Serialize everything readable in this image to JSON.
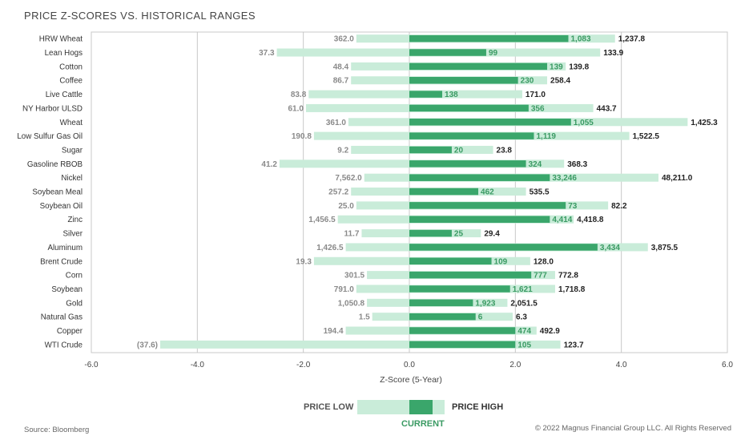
{
  "chart_data": {
    "type": "bar",
    "title": "PRICE Z-SCORES VS. HISTORICAL RANGES",
    "xlabel": "Z-Score (5-Year)",
    "xlim": [
      -6,
      6
    ],
    "xticks": [
      -6,
      -4,
      -2,
      0,
      2,
      4,
      6
    ],
    "xtick_labels": [
      "-6.0",
      "-4.0",
      "-2.0",
      "0.0",
      "2.0",
      "4.0",
      "6.0"
    ],
    "gridlines": "vertical",
    "legend": {
      "low": "PRICE LOW",
      "high": "PRICE HIGH",
      "current": "CURRENT"
    },
    "rows": [
      {
        "name": "HRW Wheat",
        "z_low": -1.0,
        "z_high": 3.88,
        "z_current": 3.0,
        "low_label": "362.0",
        "current_label": "1,083",
        "high_label": "1,237.8"
      },
      {
        "name": "Lean Hogs",
        "z_low": -2.5,
        "z_high": 3.6,
        "z_current": 1.45,
        "low_label": "37.3",
        "current_label": "99",
        "high_label": "133.9"
      },
      {
        "name": "Cotton",
        "z_low": -1.1,
        "z_high": 2.95,
        "z_current": 2.6,
        "low_label": "48.4",
        "current_label": "139",
        "high_label": "139.8"
      },
      {
        "name": "Coffee",
        "z_low": -1.1,
        "z_high": 2.6,
        "z_current": 2.05,
        "low_label": "86.7",
        "current_label": "230",
        "high_label": "258.4"
      },
      {
        "name": "Live Cattle",
        "z_low": -1.9,
        "z_high": 2.13,
        "z_current": 0.62,
        "low_label": "83.8",
        "current_label": "138",
        "high_label": "171.0"
      },
      {
        "name": "NY Harbor ULSD",
        "z_low": -1.95,
        "z_high": 3.47,
        "z_current": 2.25,
        "low_label": "61.0",
        "current_label": "356",
        "high_label": "443.7"
      },
      {
        "name": "Wheat",
        "z_low": -1.15,
        "z_high": 5.25,
        "z_current": 3.05,
        "low_label": "361.0",
        "current_label": "1,055",
        "high_label": "1,425.3"
      },
      {
        "name": "Low Sulfur Gas Oil",
        "z_low": -1.8,
        "z_high": 4.15,
        "z_current": 2.35,
        "low_label": "190.8",
        "current_label": "1,119",
        "high_label": "1,522.5"
      },
      {
        "name": "Sugar",
        "z_low": -1.1,
        "z_high": 1.58,
        "z_current": 0.8,
        "low_label": "9.2",
        "current_label": "20",
        "high_label": "23.8"
      },
      {
        "name": "Gasoline RBOB",
        "z_low": -2.45,
        "z_high": 2.92,
        "z_current": 2.2,
        "low_label": "41.2",
        "current_label": "324",
        "high_label": "368.3"
      },
      {
        "name": "Nickel",
        "z_low": -0.85,
        "z_high": 4.7,
        "z_current": 2.65,
        "low_label": "7,562.0",
        "current_label": "33,246",
        "high_label": "48,211.0"
      },
      {
        "name": "Soybean Meal",
        "z_low": -1.1,
        "z_high": 2.2,
        "z_current": 1.3,
        "low_label": "257.2",
        "current_label": "462",
        "high_label": "535.5"
      },
      {
        "name": "Soybean Oil",
        "z_low": -1.0,
        "z_high": 3.75,
        "z_current": 2.95,
        "low_label": "25.0",
        "current_label": "73",
        "high_label": "82.2"
      },
      {
        "name": "Zinc",
        "z_low": -1.35,
        "z_high": 3.1,
        "z_current": 2.65,
        "low_label": "1,456.5",
        "current_label": "4,414",
        "high_label": "4,418.8"
      },
      {
        "name": "Silver",
        "z_low": -0.9,
        "z_high": 1.35,
        "z_current": 0.8,
        "low_label": "11.7",
        "current_label": "25",
        "high_label": "29.4"
      },
      {
        "name": "Aluminum",
        "z_low": -1.2,
        "z_high": 4.5,
        "z_current": 3.55,
        "low_label": "1,426.5",
        "current_label": "3,434",
        "high_label": "3,875.5"
      },
      {
        "name": "Brent Crude",
        "z_low": -1.8,
        "z_high": 2.28,
        "z_current": 1.55,
        "low_label": "19.3",
        "current_label": "109",
        "high_label": "128.0"
      },
      {
        "name": "Corn",
        "z_low": -0.8,
        "z_high": 2.75,
        "z_current": 2.3,
        "low_label": "301.5",
        "current_label": "777",
        "high_label": "772.8"
      },
      {
        "name": "Soybean",
        "z_low": -1.0,
        "z_high": 2.75,
        "z_current": 1.9,
        "low_label": "791.0",
        "current_label": "1,621",
        "high_label": "1,718.8"
      },
      {
        "name": "Gold",
        "z_low": -0.8,
        "z_high": 1.85,
        "z_current": 1.2,
        "low_label": "1,050.8",
        "current_label": "1,923",
        "high_label": "2,051.5"
      },
      {
        "name": "Natural Gas",
        "z_low": -0.7,
        "z_high": 1.95,
        "z_current": 1.25,
        "low_label": "1.5",
        "current_label": "6",
        "high_label": "6.3"
      },
      {
        "name": "Copper",
        "z_low": -1.2,
        "z_high": 2.4,
        "z_current": 2.0,
        "low_label": "194.4",
        "current_label": "474",
        "high_label": "492.9"
      },
      {
        "name": "WTI Crude",
        "z_low": -4.7,
        "z_high": 2.85,
        "z_current": 2.0,
        "low_label": "(37.6)",
        "current_label": "105",
        "high_label": "123.7"
      }
    ]
  },
  "footer": {
    "source": "Source: Bloomberg",
    "copyright": "© 2022 Magnus Financial Group LLC. All Rights Reserved"
  },
  "colors": {
    "range": "#c9ecd9",
    "current": "#3aa66b",
    "current_text": "#3a9a63",
    "low_text": "#8a8a8a",
    "high_text": "#222222",
    "grid": "#c8c8c8"
  }
}
